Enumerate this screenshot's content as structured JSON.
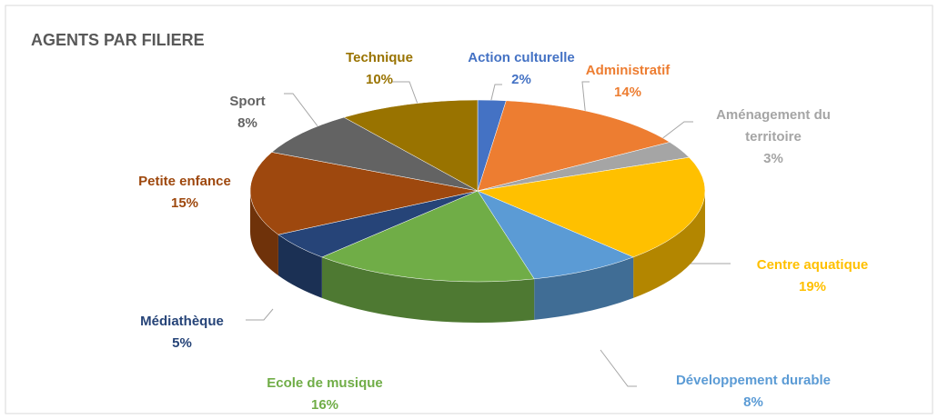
{
  "chart_data": {
    "type": "pie",
    "title": "AGENTS PAR FILIERE",
    "categories": [
      "Action culturelle",
      "Administratif",
      "Aménagement du territoire",
      "Centre aquatique",
      "Développement durable",
      "Ecole de musique",
      "Médiathèque",
      "Petite enfance",
      "Sport",
      "Technique"
    ],
    "values": [
      2,
      14,
      3,
      19,
      8,
      16,
      5,
      15,
      8,
      10
    ],
    "value_labels": [
      "2%",
      "14%",
      "3%",
      "19%",
      "8%",
      "16%",
      "5%",
      "15%",
      "8%",
      "10%"
    ],
    "colors": [
      "#4472c4",
      "#ed7d31",
      "#a5a5a5",
      "#ffc000",
      "#5b9bd5",
      "#70ad47",
      "#264478",
      "#9e480e",
      "#636363",
      "#997300"
    ]
  }
}
